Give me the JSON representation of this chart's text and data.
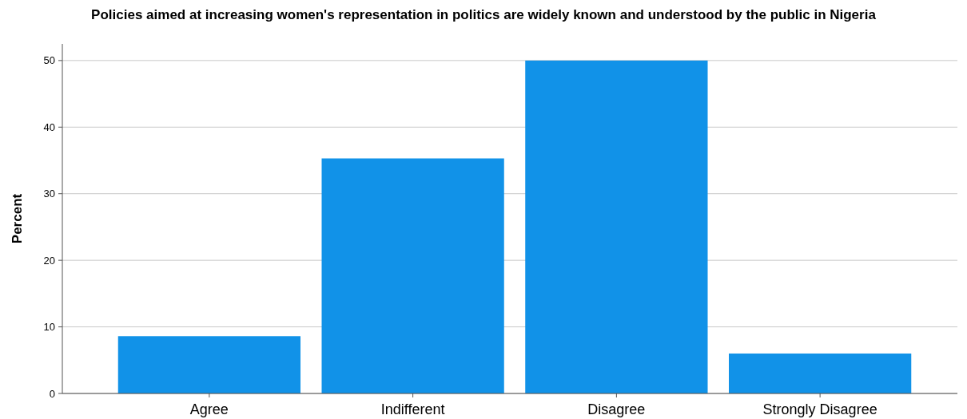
{
  "chart_data": {
    "type": "bar",
    "title": "Policies aimed at increasing women's representation in politics are widely known and understood by the public in Nigeria",
    "ylabel": "Percent",
    "categories": [
      "Agree",
      "Indifferent",
      "Disagree",
      "Strongly Disagree"
    ],
    "values": [
      8.6,
      35.3,
      50.0,
      6.0
    ],
    "color": "#1192e8",
    "ylim": [
      0,
      52.5
    ],
    "yticks": [
      0,
      10,
      20,
      30,
      40,
      50
    ],
    "grid": "y"
  }
}
